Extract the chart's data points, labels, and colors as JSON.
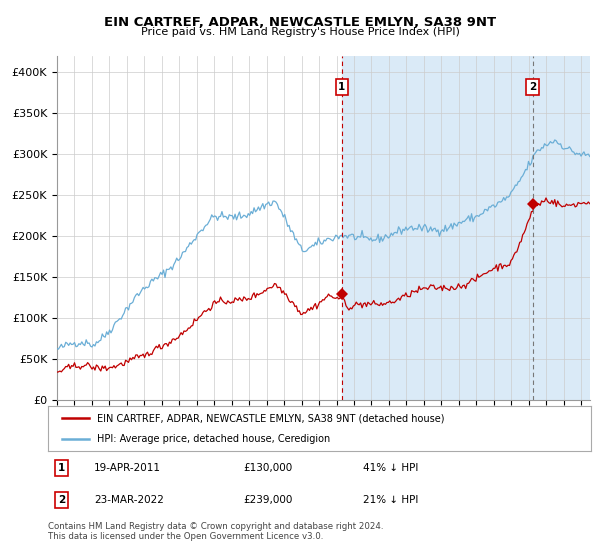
{
  "title": "EIN CARTREF, ADPAR, NEWCASTLE EMLYN, SA38 9NT",
  "subtitle": "Price paid vs. HM Land Registry's House Price Index (HPI)",
  "xlim_start": 1995.0,
  "xlim_end": 2025.5,
  "ylim": [
    0,
    420000
  ],
  "yticks": [
    0,
    50000,
    100000,
    150000,
    200000,
    250000,
    300000,
    350000,
    400000
  ],
  "ytick_labels": [
    "£0",
    "£50K",
    "£100K",
    "£150K",
    "£200K",
    "£250K",
    "£300K",
    "£350K",
    "£400K"
  ],
  "hpi_color": "#6baed6",
  "price_color": "#c00000",
  "sale1_date_x": 2011.3,
  "sale1_price": 130000,
  "sale1_label": "1",
  "sale2_date_x": 2022.22,
  "sale2_price": 239000,
  "sale2_label": "2",
  "legend_property": "EIN CARTREF, ADPAR, NEWCASTLE EMLYN, SA38 9NT (detached house)",
  "legend_hpi": "HPI: Average price, detached house, Ceredigion",
  "footer": "Contains HM Land Registry data © Crown copyright and database right 2024.\nThis data is licensed under the Open Government Licence v3.0.",
  "table_rows": [
    {
      "label": "1",
      "date": "19-APR-2011",
      "price": "£130,000",
      "pct": "41% ↓ HPI"
    },
    {
      "label": "2",
      "date": "23-MAR-2022",
      "price": "£239,000",
      "pct": "21% ↓ HPI"
    }
  ],
  "background_shaded_start": 2011.3,
  "background_shaded_end": 2025.5,
  "background_shaded_color": "#daeaf7",
  "grid_color": "#cccccc",
  "border_color": "#aaaaaa"
}
